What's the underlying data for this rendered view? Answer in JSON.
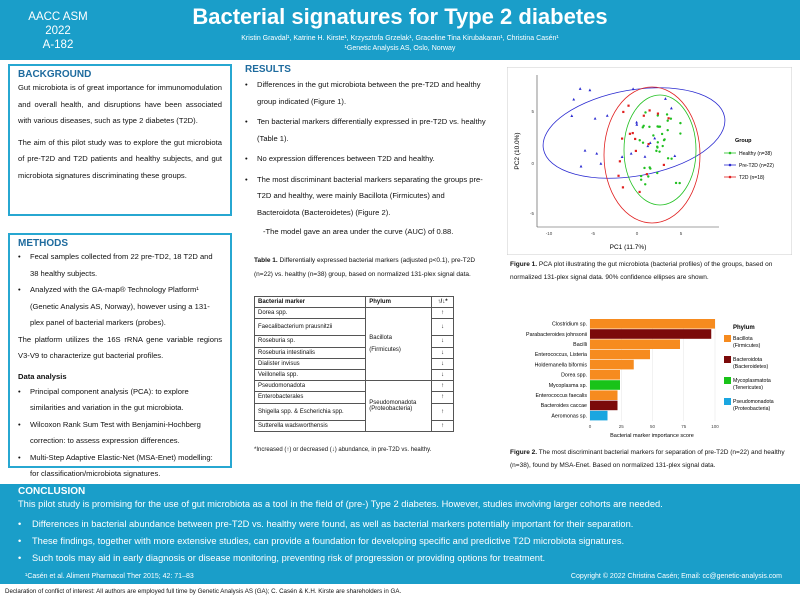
{
  "header": {
    "conf_line1": "AACC ASM 2022",
    "conf_line2": "A-182",
    "title": "Bacterial signatures for Type 2 diabetes",
    "authors": "Kristin Gravdal¹, Katrine H. Kirste¹, Krzysztofa Grzelak¹, Graceline Tina Kirubakaran¹, Christina Casén¹",
    "affiliation": "¹Genetic Analysis AS, Oslo, Norway"
  },
  "background": {
    "heading": "BACKGROUND",
    "p1": "Gut microbiota is of great importance for immunomodulation and overall health, and disruptions have been associated with various diseases, such as type 2 diabetes (T2D).",
    "p2": "The aim of this pilot study was to explore the gut microbiota of pre-T2D and T2D patients and healthy subjects, and gut microbiota signatures discriminating these groups."
  },
  "methods": {
    "heading": "METHODS",
    "items": [
      "Fecal samples collected from 22 pre-TD2, 18 T2D and 38 healthy subjects.",
      "Analyzed with the GA-map® Technology Platform¹ (Genetic Analysis AS, Norway), however using a 131-plex panel of bacterial markers (probes)."
    ],
    "platform": "The platform utilizes the 16S rRNA gene variable regions V3-V9 to characterize gut bacterial profiles.",
    "analysis_heading": "Data analysis",
    "analysis_items": [
      "Principal component analysis (PCA): to explore similarities and variation in the gut microbiota.",
      "Wilcoxon Rank Sum Test with Benjamini-Hochberg correction: to assess expression differences.",
      "Multi-Step Adaptive Elastic-Net (MSA-Enet) modelling: for classification/microbiota signatures."
    ]
  },
  "results": {
    "heading": "RESULTS",
    "items": [
      "Differences in the gut microbiota between the pre-T2D and healthy group indicated (Figure 1).",
      "Ten bacterial markers differentially expressed in pre-T2D vs. healthy (Table 1).",
      "No expression differences between T2D and healthy.",
      "The most discriminant bacterial markers separating the groups pre-T2D and healthy, were mainly Bacillota (Firmicutes) and Bacteroidota (Bacteroidetes) (Figure 2)."
    ],
    "auc": "-The  model gave an area under the curve (AUC) of 0.88."
  },
  "table1": {
    "caption_bold": "Table 1.",
    "caption": " Differentially expressed bacterial markers (adjusted p<0.1), pre-T2D (n=22) vs. healthy (n=38) group, based on normalized 131-plex signal data.",
    "headers": [
      "Bacterial marker",
      "Phylum",
      "↑/↓*"
    ],
    "rows": [
      {
        "marker": "Dorea spp.",
        "arrow": "↑"
      },
      {
        "marker": "Faecalibacterium prausnitzii",
        "arrow": "↓"
      },
      {
        "marker": "Roseburia sp.",
        "arrow": "↓"
      },
      {
        "marker": "Roseburia intestinalis",
        "arrow": "↓"
      },
      {
        "marker": "Dialister invisus",
        "arrow": "↓"
      },
      {
        "marker": "Veillonella spp.",
        "arrow": "↓"
      },
      {
        "marker": "Pseudomonadota",
        "arrow": "↑"
      },
      {
        "marker": "Enterobacterales",
        "arrow": "↑"
      },
      {
        "marker": "Shigella spp. & Escherichia spp.",
        "arrow": "↑"
      },
      {
        "marker": "Sutterella wadsworthensis",
        "arrow": "↑"
      }
    ],
    "phylum1_a": "Bacillota",
    "phylum1_b": "(Firmicutes)",
    "phylum2_a": "Pseudomonadota",
    "phylum2_b": "(Proteobacteria)",
    "footnote": "*Increased (↑) or decreased (↓) abundance, in pre-T2D vs. healthy."
  },
  "figure1": {
    "caption_bold": "Figure 1.",
    "caption": " PCA plot illustrating the gut microbiota (bacterial profiles) of the groups, based on normalized 131-plex signal data. 90% confidence ellipses are shown."
  },
  "figure2": {
    "caption_bold": "Figure 2.",
    "caption": " The most discriminant bacterial markers for separation of pre-T2D (n=22) and healthy (n=38),  found by MSA-Enet. Based on normalized 131-plex signal data."
  },
  "chart_data": [
    {
      "type": "scatter",
      "title": "",
      "xlabel": "PC1 (11.7%)",
      "ylabel": "PC2 (10.0%)",
      "xticks": [
        "-10",
        "-5",
        "0",
        "5"
      ],
      "yticks": [
        "5",
        "0",
        "-5"
      ],
      "legend_title": "Group",
      "legend_position": "right",
      "series": [
        {
          "name": "Healthy (n=38)",
          "color": "#21c021"
        },
        {
          "name": "Pre-T2D (n=22)",
          "color": "#2a2ad0"
        },
        {
          "name": "T2D (n=18)",
          "color": "#e02020"
        }
      ]
    },
    {
      "type": "bar",
      "title": "",
      "xlabel": "Bacterial marker importance score",
      "xlim": [
        0,
        100
      ],
      "xticks": [
        "0",
        "25",
        "50",
        "75",
        "100"
      ],
      "categories": [
        "Clostridium sp.",
        "Parabacteroides johnsonii",
        "Bacilli",
        "Enterococcus, Listeria",
        "Holdemanella biformis",
        "Dorea spp.",
        "Mycoplasma sp.",
        "Enterococcus faecalis",
        "Bacteroides caccae",
        "Aeromonas sp."
      ],
      "values": [
        100,
        97,
        72,
        48,
        35,
        24,
        24,
        22,
        22,
        14
      ],
      "phyla": [
        "Bacillota",
        "Bacteroidota",
        "Bacillota",
        "Bacillota",
        "Bacillota",
        "Bacillota",
        "Mycoplasmatota",
        "Bacillota",
        "Bacteroidota",
        "Pseudomonadota"
      ],
      "legend_title": "Phylum",
      "legend_position": "right",
      "legend": [
        {
          "line1": "Bacillota",
          "line2": "(Firmicutes)",
          "color": "#f68b1f"
        },
        {
          "line1": "Bacteroidota",
          "line2": "(Bacteroidetes)",
          "color": "#7b0a0a"
        },
        {
          "line1": "Mycoplasmatota",
          "line2": "(Tenericutes)",
          "color": "#19c319"
        },
        {
          "line1": "Pseudomonadota",
          "line2": "(Proteobacteria)",
          "color": "#1aa6e0"
        }
      ]
    }
  ],
  "conclusion": {
    "heading": "CONCLUSION",
    "text": "This pilot study is promising for the use of gut microbiota as a tool in the field of (pre-) Type 2 diabetes. However, studies involving larger cohorts are needed.",
    "items": [
      "Differences in bacterial abundance between pre-T2D vs. healthy were found, as well as bacterial markers potentially important for their separation.",
      "These findings, together with more extensive studies, can provide a foundation for developing specific and predictive T2D microbiota signatures.",
      "Such tools may aid in early diagnosis or disease monitoring, preventing risk of progression or providing options for treatment."
    ]
  },
  "footer": {
    "reference": "¹Casén et al. Aliment Pharmacol Ther 2015; 42: 71–83",
    "copyright": "Copyright © 2022 Christina Casén; Email: cc@genetic-analysis.com",
    "declaration": "Declaration of conflict of interest: All authors are employed full time by Genetic Analysis AS (GA); C. Casén & K.H. Kirste are shareholders in GA."
  }
}
